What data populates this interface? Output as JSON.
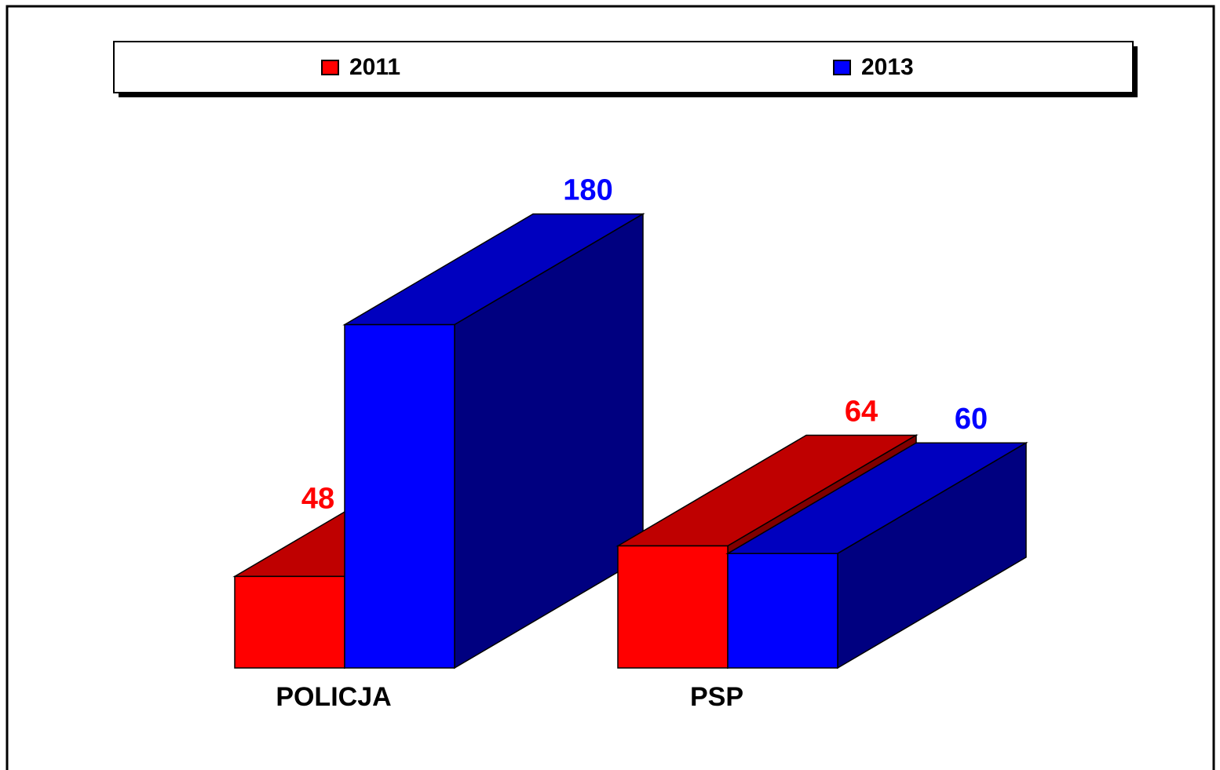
{
  "chart_data": {
    "type": "bar3d",
    "categories": [
      "POLICJA",
      "PSP"
    ],
    "series": [
      {
        "name": "2011",
        "color": "#ff0000",
        "values": [
          48,
          64
        ]
      },
      {
        "name": "2013",
        "color": "#0000ff",
        "values": [
          180,
          60
        ]
      }
    ],
    "legend": "top"
  }
}
